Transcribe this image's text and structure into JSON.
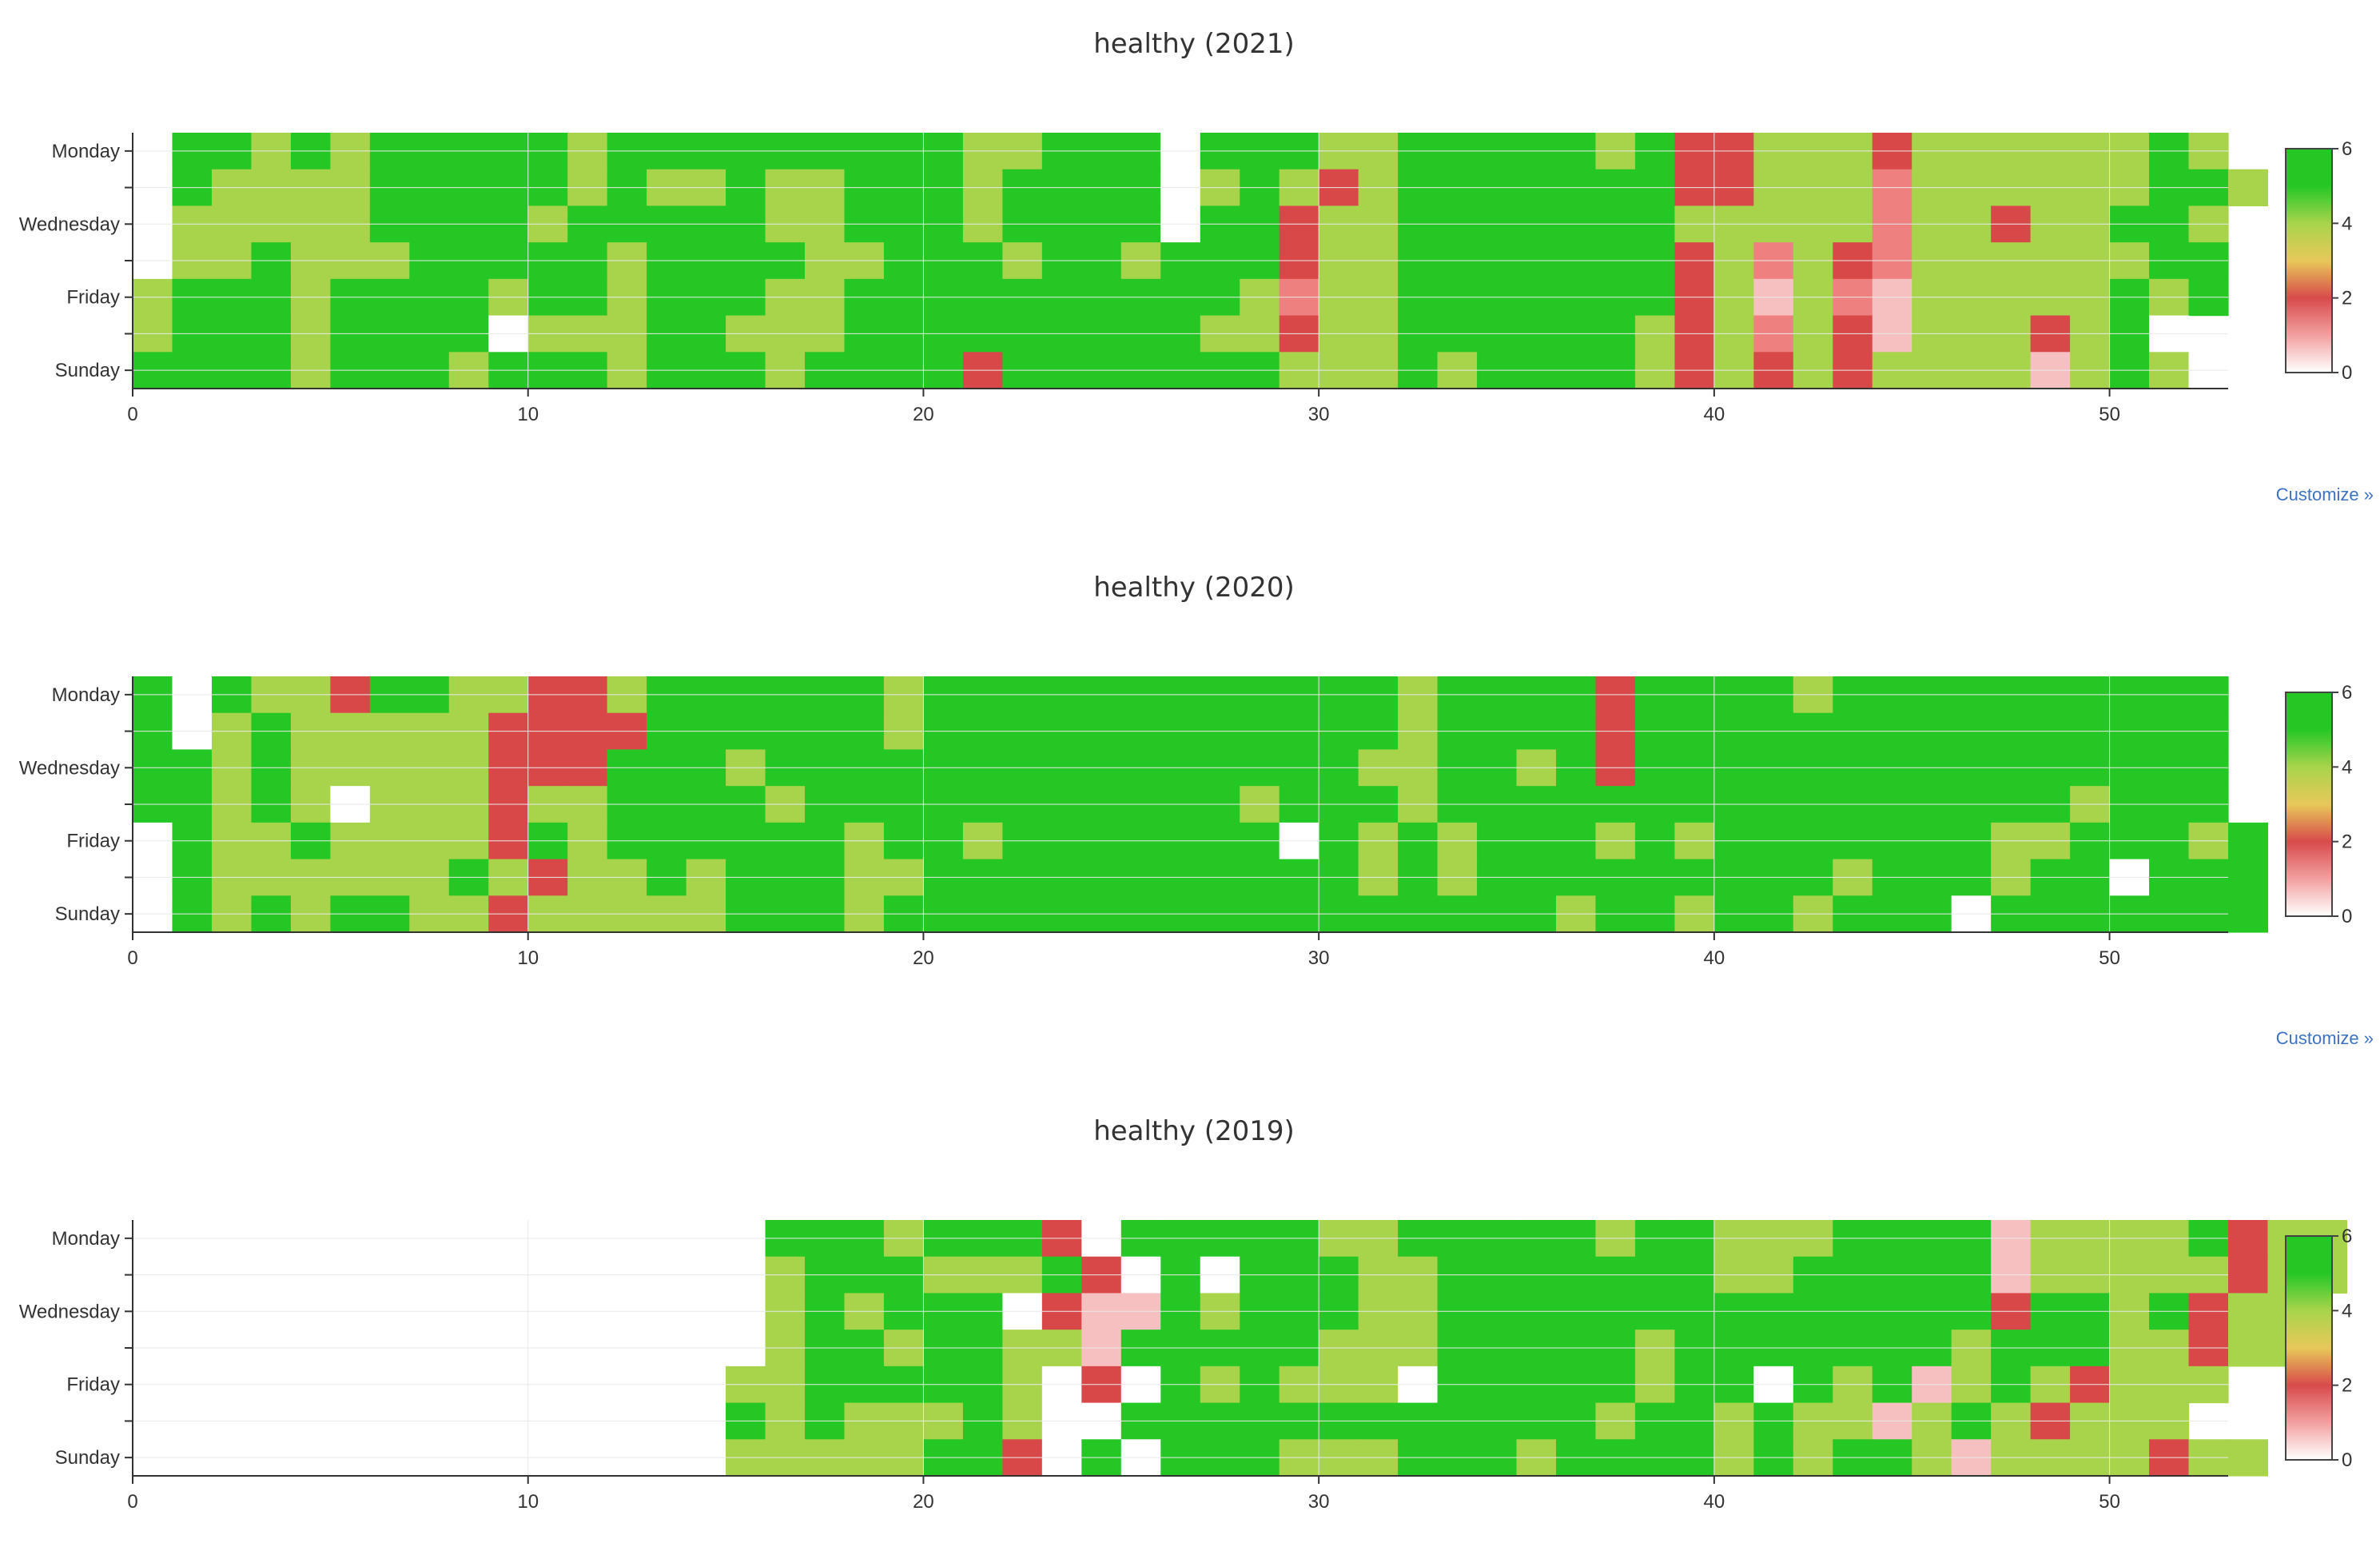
{
  "customize_label": "Customize »",
  "colors": {
    "scale": [
      "#ffffff",
      "#f7c0c0",
      "#ee8080",
      "#d94848",
      "#a8d44c",
      "#25c725"
    ],
    "axis": "#333333",
    "grid": "#e9e9e9",
    "link": "#3d72c4"
  },
  "colorbar": {
    "ticks": [
      "0",
      "2",
      "4",
      "6"
    ],
    "stops": [
      "#ffffff",
      "#f2a0a0",
      "#d84a4a",
      "#e8c85a",
      "#a8d44c",
      "#25c725",
      "#25c725"
    ]
  },
  "chart_data": [
    {
      "type": "heatmap",
      "title": "healthy (2021)",
      "y_ticks": [
        "Monday",
        "Wednesday",
        "Friday",
        "Sunday"
      ],
      "x_ticks": [
        "0",
        "10",
        "20",
        "30",
        "40",
        "50"
      ],
      "xlim": [
        0,
        53
      ],
      "zlim": [
        0,
        6
      ],
      "x_start": 0,
      "rows": [
        "_GGLGLGGGGGLGGGGGGGGGLLGGG_GGGLLGGGGGLGRRLLLRLLLLLLGL",
        "_GLLLLGGGGGLGLLGLLGGGLGGGG_LGLRLGGGGGGGRRLLLpLLLLLLGGL",
        "_LLLLLGGGGLGGGGGLLGGGLGGGG_GGRLLGGGGGGGLLLLLpLLRLLGGL",
        "_LLGLLLGGGGGLGGGGLLGGGLGGLGGGRLLGGGGGGGRLpLRpLLLLLLGG",
        "LGGGLGGGGLGGLGGGLLGGGGGGGGGGLpLLGGGGGGGRLkLpkLLLLLGLG",
        "LGGGLGGGG_LLLGGLLLGGGGGGGGGLLRLLGGGGGGLRLpLRkLLLRLG_",
        "GGGGLGGGLGGGLGGGLGGGGRGGGGGGGLLLGLGGGGLRLRLRLLLLkLGL_"
      ]
    },
    {
      "type": "heatmap",
      "title": "healthy (2020)",
      "y_ticks": [
        "Monday",
        "Wednesday",
        "Friday",
        "Sunday"
      ],
      "x_ticks": [
        "0",
        "10",
        "20",
        "30",
        "40",
        "50"
      ],
      "xlim": [
        0,
        53
      ],
      "zlim": [
        0,
        6
      ],
      "x_start": 0,
      "rows": [
        "G_GLLRGGLLRRLGGGGGGLGGGGGGGGGGGGLGGGGRGGGGLGGGGGGGGGG",
        "G_LGLLLLLRRRRGGGGGGLGGGGGGGGGGGGLGGGGRGGGGGGGGGGGGGGG",
        "GGLGLLLLLRRRGGGLGGGGGGGGGGGGGGGLLGGLGRGGGGGGGGGGGGGGG",
        "GGLGL_LLLRLLGGGGLGGGGGGGGGGGLGGGLGGGGGGGGGGGGGGGGLGGG",
        "_GLLGLLLLRGLGGGGGGLGGLGGGGGGG_GLGLGGGLGLGGGGGGGLLGGGLG",
        "_GLLLLLLGLRLLGLGGGLLGGGGGGGGGGGLGLGGGGGGGGGLGGGLGG_GGG",
        "_GLGLGGLLRLLLLLGGGLGGGGGGGGGGGGGGGGGLGGLGGLGGG_GGGGGGG"
      ]
    },
    {
      "type": "heatmap",
      "title": "healthy (2019)",
      "y_ticks": [
        "Monday",
        "Wednesday",
        "Friday",
        "Sunday"
      ],
      "x_ticks": [
        "0",
        "10",
        "20",
        "30",
        "40",
        "50"
      ],
      "xlim": [
        0,
        53
      ],
      "zlim": [
        0,
        6
      ],
      "x_start": 15,
      "rows": [
        "_GGGLGGGR_GGGGGLLGGGGGLGGLLLGGGGkLLLLGRLL",
        "_LGGGLLLGR_G_GGGLLGGGGGGGLLGGGGGkLLLLLRLL",
        "_LGLGGG_RkkGLGGGLLGGGGGGGGGGGGGGRGGLGRLL",
        "_LGGLGGLLkGGGGGLLLGGGGGLGGGGGGGLGGGLLRLL",
        "LLGGGGGL_R_GLGLLL_GGGGGLGG_GLGkLGLRLLL",
        "GLGLLLGL__GGGGGGGGGGGGLGGLGLLkLGLRLLL",
        "LLLLLGGR_G_GGGLLLGGGLGGGGLGLGGLkLLLLRLL"
      ]
    }
  ]
}
